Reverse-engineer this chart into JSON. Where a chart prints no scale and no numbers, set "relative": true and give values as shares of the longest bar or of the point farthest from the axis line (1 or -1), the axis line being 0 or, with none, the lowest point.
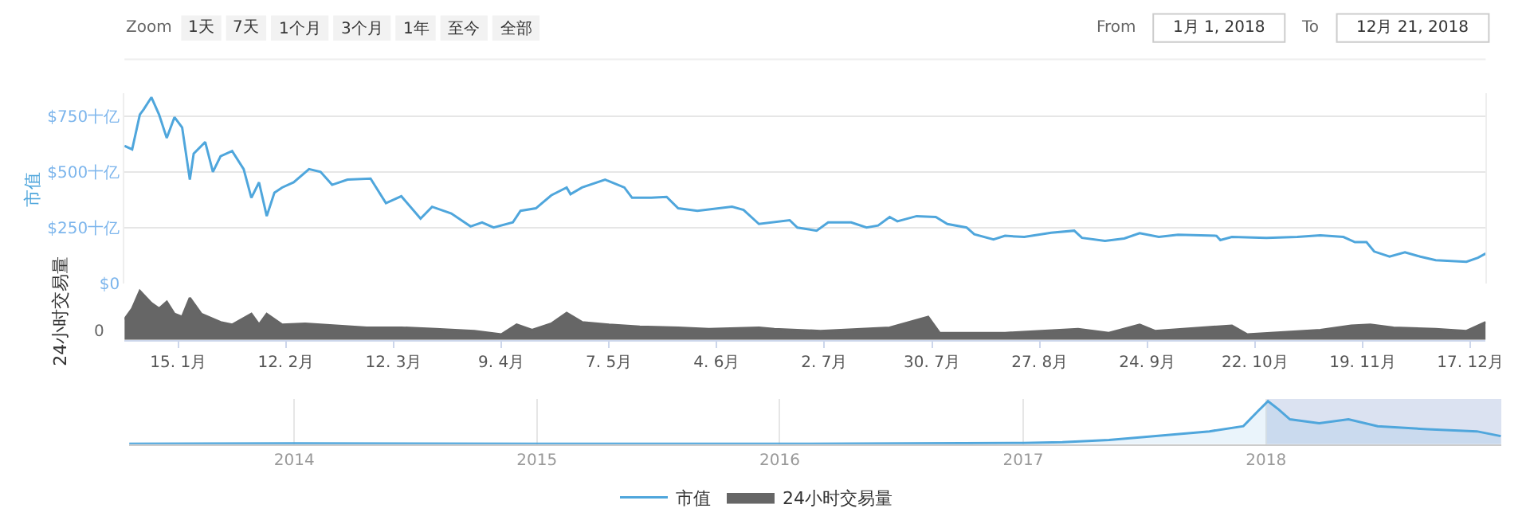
{
  "chart_data": [
    {
      "type": "line",
      "ylabel": "市值",
      "tick_labels": "y",
      "grid": "y",
      "legend": "bottom",
      "annotations": [
        "Zoom",
        "1天",
        "7天",
        "1个月",
        "3个月",
        "1年",
        "至今",
        "全部",
        "From",
        "1月 1, 2018",
        "To",
        "12月 21, 2018"
      ],
      "xlim": [
        "2018-01-01",
        "2018-12-21"
      ],
      "ylim": [
        0,
        850
      ],
      "yticks": [
        {
          "value": 0,
          "label": "$0"
        },
        {
          "value": 250,
          "label": "$250十亿"
        },
        {
          "value": 500,
          "label": "$500十亿"
        },
        {
          "value": 750,
          "label": "$750十亿"
        }
      ],
      "series": [
        {
          "name": "市值",
          "color": "#4fa6dc",
          "x": [
            "2018-01-01",
            "2018-01-03",
            "2018-01-05",
            "2018-01-06",
            "2018-01-08",
            "2018-01-10",
            "2018-01-12",
            "2018-01-14",
            "2018-01-16",
            "2018-01-18",
            "2018-01-19",
            "2018-01-22",
            "2018-01-24",
            "2018-01-26",
            "2018-01-29",
            "2018-02-01",
            "2018-02-03",
            "2018-02-05",
            "2018-02-07",
            "2018-02-09",
            "2018-02-11",
            "2018-02-14",
            "2018-02-18",
            "2018-02-21",
            "2018-02-24",
            "2018-02-28",
            "2018-03-06",
            "2018-03-10",
            "2018-03-14",
            "2018-03-19",
            "2018-03-22",
            "2018-03-27",
            "2018-04-01",
            "2018-04-04",
            "2018-04-07",
            "2018-04-12",
            "2018-04-14",
            "2018-04-18",
            "2018-04-22",
            "2018-04-26",
            "2018-04-27",
            "2018-04-30",
            "2018-05-06",
            "2018-05-11",
            "2018-05-13",
            "2018-05-18",
            "2018-05-22",
            "2018-05-25",
            "2018-05-30",
            "2018-06-08",
            "2018-06-11",
            "2018-06-15",
            "2018-06-23",
            "2018-06-25",
            "2018-06-30",
            "2018-07-03",
            "2018-07-09",
            "2018-07-13",
            "2018-07-16",
            "2018-07-19",
            "2018-07-21",
            "2018-07-26",
            "2018-07-31",
            "2018-08-03",
            "2018-08-08",
            "2018-08-10",
            "2018-08-15",
            "2018-08-18",
            "2018-08-23",
            "2018-08-30",
            "2018-09-05",
            "2018-09-07",
            "2018-09-13",
            "2018-09-18",
            "2018-09-22",
            "2018-09-27",
            "2018-10-02",
            "2018-10-12",
            "2018-10-13",
            "2018-10-16",
            "2018-10-25",
            "2018-11-02",
            "2018-11-08",
            "2018-11-14",
            "2018-11-17",
            "2018-11-20",
            "2018-11-22",
            "2018-11-26",
            "2018-11-30",
            "2018-12-04",
            "2018-12-08",
            "2018-12-16",
            "2018-12-19",
            "2018-12-21"
          ],
          "values": [
            616,
            600,
            756,
            779,
            833,
            756,
            651,
            744,
            698,
            465,
            581,
            633,
            500,
            570,
            593,
            512,
            384,
            453,
            302,
            407,
            430,
            453,
            512,
            500,
            442,
            465,
            470,
            360,
            391,
            291,
            344,
            314,
            256,
            274,
            251,
            274,
            326,
            337,
            395,
            430,
            400,
            430,
            465,
            430,
            384,
            384,
            388,
            337,
            326,
            344,
            330,
            267,
            284,
            251,
            237,
            274,
            274,
            251,
            260,
            298,
            279,
            302,
            298,
            267,
            251,
            221,
            198,
            214,
            209,
            228,
            237,
            205,
            191,
            202,
            226,
            209,
            219,
            214,
            195,
            209,
            205,
            209,
            216,
            209,
            186,
            186,
            144,
            121,
            140,
            121,
            105,
            98,
            116,
            135
          ]
        }
      ]
    },
    {
      "type": "area",
      "ylabel": "24小时交易量",
      "relative": true,
      "tick_labels": "x",
      "legend": "bottom",
      "annotations": [
        "0"
      ],
      "xlim": [
        "2018-01-01",
        "2018-12-21"
      ],
      "xticks": [
        {
          "value": "2018-01-15",
          "label": "15. 1月"
        },
        {
          "value": "2018-02-12",
          "label": "12. 2月"
        },
        {
          "value": "2018-03-12",
          "label": "12. 3月"
        },
        {
          "value": "2018-04-09",
          "label": "9. 4月"
        },
        {
          "value": "2018-05-07",
          "label": "7. 5月"
        },
        {
          "value": "2018-06-04",
          "label": "4. 6月"
        },
        {
          "value": "2018-07-02",
          "label": "2. 7月"
        },
        {
          "value": "2018-07-30",
          "label": "30. 7月"
        },
        {
          "value": "2018-08-27",
          "label": "27. 8月"
        },
        {
          "value": "2018-09-24",
          "label": "24. 9月"
        },
        {
          "value": "2018-10-22",
          "label": "22. 10月"
        },
        {
          "value": "2018-11-19",
          "label": "19. 11月"
        },
        {
          "value": "2018-12-17",
          "label": "17. 12月"
        }
      ],
      "series": [
        {
          "name": "24小时交易量",
          "color": "#666666",
          "x": [
            "2018-01-01",
            "2018-01-03",
            "2018-01-05",
            "2018-01-08",
            "2018-01-10",
            "2018-01-12",
            "2018-01-14",
            "2018-01-16",
            "2018-01-18",
            "2018-01-21",
            "2018-01-26",
            "2018-01-29",
            "2018-02-03",
            "2018-02-05",
            "2018-02-07",
            "2018-02-11",
            "2018-02-17",
            "2018-02-25",
            "2018-03-05",
            "2018-03-14",
            "2018-03-23",
            "2018-04-02",
            "2018-04-09",
            "2018-04-13",
            "2018-04-17",
            "2018-04-22",
            "2018-04-26",
            "2018-04-30",
            "2018-05-07",
            "2018-05-15",
            "2018-05-25",
            "2018-06-02",
            "2018-06-15",
            "2018-06-19",
            "2018-07-01",
            "2018-07-19",
            "2018-07-29",
            "2018-08-01",
            "2018-08-18",
            "2018-09-06",
            "2018-09-14",
            "2018-09-22",
            "2018-09-26",
            "2018-10-16",
            "2018-10-20",
            "2018-11-08",
            "2018-11-16",
            "2018-11-21",
            "2018-11-27",
            "2018-12-08",
            "2018-12-16",
            "2018-12-21"
          ],
          "values": [
            0.42,
            0.64,
            1,
            0.75,
            0.64,
            0.78,
            0.53,
            0.47,
            0.86,
            0.53,
            0.36,
            0.31,
            0.53,
            0.31,
            0.53,
            0.31,
            0.33,
            0.29,
            0.25,
            0.25,
            0.22,
            0.18,
            0.11,
            0.31,
            0.2,
            0.33,
            0.55,
            0.36,
            0.31,
            0.27,
            0.25,
            0.22,
            0.25,
            0.22,
            0.18,
            0.25,
            0.47,
            0.14,
            0.14,
            0.22,
            0.14,
            0.31,
            0.18,
            0.29,
            0.11,
            0.2,
            0.29,
            0.31,
            0.25,
            0.22,
            0.18,
            0.36
          ]
        }
      ]
    },
    {
      "type": "area",
      "relative": true,
      "tick_labels": "x",
      "grid": "x",
      "xticks": [
        {
          "value": "2014-01-01",
          "label": "2014"
        },
        {
          "value": "2015-01-01",
          "label": "2015"
        },
        {
          "value": "2016-01-01",
          "label": "2016"
        },
        {
          "value": "2017-01-01",
          "label": "2017"
        },
        {
          "value": "2018-01-01",
          "label": "2018"
        }
      ],
      "xlim": [
        "2013-04-28",
        "2018-12-21"
      ],
      "bands": [
        {
          "axis": "x",
          "from": "2018-01-01",
          "to": "2018-12-21",
          "color": "#ccd6eb"
        }
      ],
      "series": [
        {
          "color": "#4fa6dc",
          "x": [
            "2013-04-28",
            "2014-01-01",
            "2015-01-01",
            "2016-01-01",
            "2017-01-01",
            "2017-03-01",
            "2017-05-10",
            "2017-06-25",
            "2017-10-08",
            "2017-11-28",
            "2017-12-20",
            "2018-01-04",
            "2018-01-20",
            "2018-02-06",
            "2018-03-22",
            "2018-05-05",
            "2018-06-18",
            "2018-09-01",
            "2018-11-14",
            "2018-12-20"
          ],
          "values": [
            0.01,
            0.02,
            0.01,
            0.01,
            0.03,
            0.05,
            0.1,
            0.16,
            0.3,
            0.42,
            0.77,
            1,
            0.81,
            0.58,
            0.49,
            0.58,
            0.42,
            0.35,
            0.3,
            0.19
          ]
        }
      ]
    }
  ]
}
